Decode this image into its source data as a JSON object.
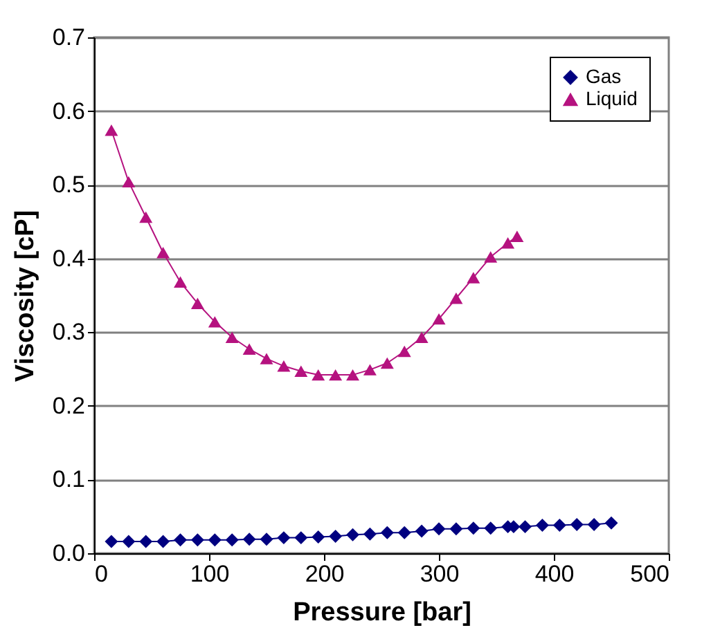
{
  "chart_data": {
    "type": "line",
    "xlabel": "Pressure [bar]",
    "ylabel": "Viscosity [cP]",
    "xlim": [
      0,
      500
    ],
    "xticks": [
      0,
      100,
      200,
      300,
      400,
      500
    ],
    "ylim": [
      0,
      0.7
    ],
    "yticks": [
      {
        "value": 0,
        "label": "0.0"
      },
      0.1,
      0.2,
      0.3,
      0.4,
      0.5,
      0.6,
      0.7
    ],
    "grid": "y",
    "legend": "top right",
    "marker": "circle",
    "line_style": "solid",
    "series": [
      {
        "name": "Gas",
        "color": "#000080",
        "marker": "diamond",
        "x": [
          15,
          30,
          45,
          60,
          75,
          90,
          105,
          120,
          135,
          150,
          165,
          180,
          195,
          210,
          225,
          240,
          255,
          270,
          285,
          300,
          315,
          330,
          345,
          360,
          365,
          375,
          390,
          405,
          420,
          435,
          450
        ],
        "values": [
          0.016,
          0.016,
          0.016,
          0.016,
          0.018,
          0.018,
          0.018,
          0.018,
          0.019,
          0.019,
          0.021,
          0.021,
          0.022,
          0.023,
          0.025,
          0.026,
          0.028,
          0.028,
          0.03,
          0.033,
          0.033,
          0.034,
          0.034,
          0.036,
          0.036,
          0.036,
          0.038,
          0.038,
          0.039,
          0.039,
          0.041
        ]
      },
      {
        "name": "Liquid",
        "color": "#b5127f",
        "marker": "triangle",
        "x": [
          15,
          30,
          45,
          60,
          75,
          90,
          105,
          120,
          135,
          150,
          165,
          180,
          195,
          210,
          225,
          240,
          255,
          270,
          285,
          300,
          315,
          330,
          345,
          360,
          368
        ],
        "values": [
          0.574,
          0.504,
          0.456,
          0.408,
          0.368,
          0.339,
          0.314,
          0.293,
          0.277,
          0.264,
          0.254,
          0.247,
          0.242,
          0.242,
          0.242,
          0.249,
          0.258,
          0.274,
          0.293,
          0.318,
          0.346,
          0.374,
          0.402,
          0.421,
          0.43
        ]
      }
    ]
  }
}
